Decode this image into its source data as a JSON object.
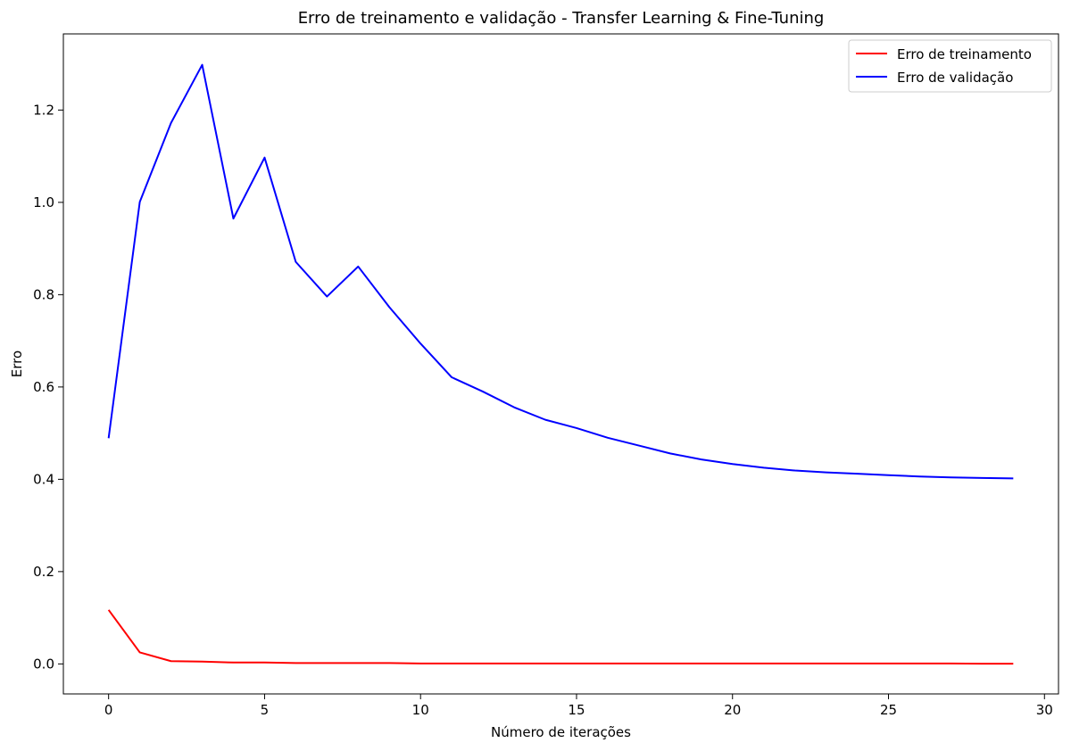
{
  "chart_data": {
    "type": "line",
    "title": "Erro de treinamento e validação - Transfer Learning & Fine-Tuning",
    "xlabel": "Número de iterações",
    "ylabel": "Erro",
    "xlim": [
      -1.45,
      30.45
    ],
    "ylim": [
      -0.065,
      1.365
    ],
    "xticks": [
      0,
      5,
      10,
      15,
      20,
      25,
      30
    ],
    "xtick_labels": [
      "0",
      "5",
      "10",
      "15",
      "20",
      "25",
      "30"
    ],
    "yticks": [
      0.0,
      0.2,
      0.4,
      0.6,
      0.8,
      1.0,
      1.2
    ],
    "ytick_labels": [
      "0.0",
      "0.2",
      "0.4",
      "0.6",
      "0.8",
      "1.0",
      "1.2"
    ],
    "grid": false,
    "legend_position": "top-right",
    "x": [
      0,
      1,
      2,
      3,
      4,
      5,
      6,
      7,
      8,
      9,
      10,
      11,
      12,
      13,
      14,
      15,
      16,
      17,
      18,
      19,
      20,
      21,
      22,
      23,
      24,
      25,
      26,
      27,
      28,
      29
    ],
    "series": [
      {
        "name": "Erro de treinamento",
        "color": "#ff0000",
        "values": [
          0.117,
          0.025,
          0.006,
          0.005,
          0.003,
          0.003,
          0.002,
          0.002,
          0.002,
          0.002,
          0.001,
          0.001,
          0.001,
          0.001,
          0.001,
          0.001,
          0.001,
          0.001,
          0.001,
          0.001,
          0.001,
          0.001,
          0.001,
          0.001,
          0.001,
          0.001,
          0.001,
          0.001,
          0.0005,
          0.0005
        ]
      },
      {
        "name": "Erro de validação",
        "color": "#0000ff",
        "values": [
          0.489,
          1.001,
          1.172,
          1.298,
          0.965,
          1.097,
          0.871,
          0.796,
          0.861,
          0.773,
          0.694,
          0.621,
          0.59,
          0.556,
          0.529,
          0.511,
          0.49,
          0.473,
          0.456,
          0.443,
          0.433,
          0.425,
          0.419,
          0.415,
          0.412,
          0.409,
          0.406,
          0.404,
          0.403,
          0.402
        ]
      }
    ]
  }
}
